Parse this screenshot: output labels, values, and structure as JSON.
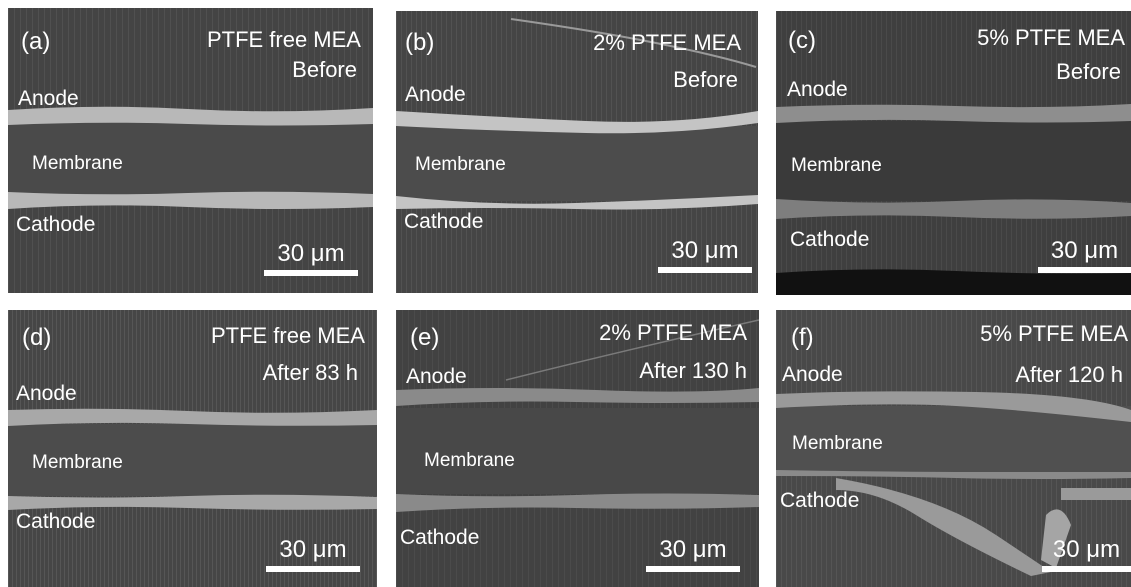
{
  "figure": {
    "panels": [
      {
        "id": "a",
        "label": "(a)",
        "title": "PTFE free MEA",
        "condition": "Before",
        "anode": "Anode",
        "membrane": "Membrane",
        "cathode": "Cathode",
        "scale": "30 μm"
      },
      {
        "id": "b",
        "label": "(b)",
        "title": "2% PTFE MEA",
        "condition": "Before",
        "anode": "Anode",
        "membrane": "Membrane",
        "cathode": "Cathode",
        "scale": "30 μm"
      },
      {
        "id": "c",
        "label": "(c)",
        "title": "5% PTFE MEA",
        "condition": "Before",
        "anode": "Anode",
        "membrane": "Membrane",
        "cathode": "Cathode",
        "scale": "30 μm"
      },
      {
        "id": "d",
        "label": "(d)",
        "title": "PTFE free MEA",
        "condition": "After 83 h",
        "anode": "Anode",
        "membrane": "Membrane",
        "cathode": "Cathode",
        "scale": "30 μm"
      },
      {
        "id": "e",
        "label": "(e)",
        "title": "2% PTFE MEA",
        "condition": "After 130 h",
        "anode": "Anode",
        "membrane": "Membrane",
        "cathode": "Cathode",
        "scale": "30 μm"
      },
      {
        "id": "f",
        "label": "(f)",
        "title": "5% PTFE MEA",
        "condition": "After 120 h",
        "anode": "Anode",
        "membrane": "Membrane",
        "cathode": "Cathode",
        "scale": "30 μm"
      }
    ]
  },
  "colors": {
    "background": "#3d3d3d",
    "membrane": "#4a4a4a",
    "catalyst_layer": "#b8b8b8",
    "text": "#ffffff"
  }
}
